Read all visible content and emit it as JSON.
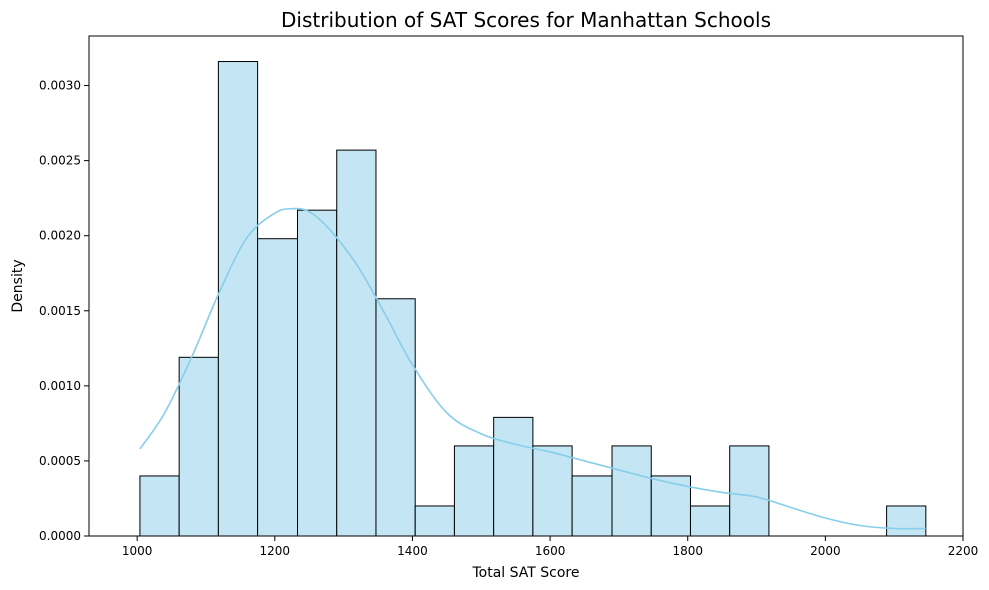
{
  "chart_data": {
    "type": "bar",
    "title": "Distribution of SAT Scores for Manhattan Schools",
    "xlabel": "Total SAT Score",
    "ylabel": "Density",
    "xlim": [
      930,
      2200
    ],
    "ylim": [
      0,
      0.00333
    ],
    "grid": false,
    "legend": "none",
    "colors": {
      "bar_fill": "#c3e5f4",
      "bar_edge": "#000000",
      "kde_line": "#87ceeb"
    },
    "x_ticks": [
      1000,
      1200,
      1400,
      1600,
      1800,
      2000,
      2200
    ],
    "x_tick_labels": [
      "1000",
      "1200",
      "1400",
      "1600",
      "1800",
      "2000",
      "2200"
    ],
    "y_ticks": [
      0,
      0.0005,
      0.001,
      0.0015,
      0.002,
      0.0025,
      0.003
    ],
    "y_tick_labels": [
      "0.0000",
      "0.0005",
      "0.0010",
      "0.0015",
      "0.0020",
      "0.0025",
      "0.0030"
    ],
    "bins": [
      {
        "x0": 1004,
        "x1": 1061,
        "density": 0.0004
      },
      {
        "x0": 1061,
        "x1": 1118,
        "density": 0.00119
      },
      {
        "x0": 1118,
        "x1": 1175,
        "density": 0.00316
      },
      {
        "x0": 1175,
        "x1": 1233,
        "density": 0.00198
      },
      {
        "x0": 1233,
        "x1": 1290,
        "density": 0.00217
      },
      {
        "x0": 1290,
        "x1": 1347,
        "density": 0.00257
      },
      {
        "x0": 1347,
        "x1": 1404,
        "density": 0.00158
      },
      {
        "x0": 1404,
        "x1": 1461,
        "density": 0.0002
      },
      {
        "x0": 1461,
        "x1": 1518,
        "density": 0.0006
      },
      {
        "x0": 1518,
        "x1": 1575,
        "density": 0.00079
      },
      {
        "x0": 1575,
        "x1": 1632,
        "density": 0.0006
      },
      {
        "x0": 1632,
        "x1": 1690,
        "density": 0.0004
      },
      {
        "x0": 1690,
        "x1": 1747,
        "density": 0.0006
      },
      {
        "x0": 1747,
        "x1": 1804,
        "density": 0.0004
      },
      {
        "x0": 1804,
        "x1": 1861,
        "density": 0.0002
      },
      {
        "x0": 1861,
        "x1": 1918,
        "density": 0.0006
      },
      {
        "x0": 1918,
        "x1": 1975,
        "density": 0
      },
      {
        "x0": 1975,
        "x1": 2032,
        "density": 0
      },
      {
        "x0": 2032,
        "x1": 2089,
        "density": 0
      },
      {
        "x0": 2089,
        "x1": 2146,
        "density": 0.0002
      }
    ],
    "kde": {
      "x": [
        1004,
        1040,
        1080,
        1120,
        1160,
        1200,
        1225,
        1250,
        1280,
        1320,
        1360,
        1400,
        1450,
        1500,
        1550,
        1600,
        1650,
        1700,
        1750,
        1800,
        1850,
        1900,
        1950,
        2000,
        2050,
        2100,
        2146
      ],
      "y": [
        0.00058,
        0.00082,
        0.0012,
        0.00163,
        0.00199,
        0.00215,
        0.00218,
        0.00216,
        0.00204,
        0.0018,
        0.00148,
        0.00114,
        0.00082,
        0.00068,
        0.00061,
        0.00056,
        0.0005,
        0.00044,
        0.00038,
        0.00033,
        0.00029,
        0.00026,
        0.00019,
        0.00012,
        7e-05,
        5e-05,
        5e-05
      ]
    }
  }
}
